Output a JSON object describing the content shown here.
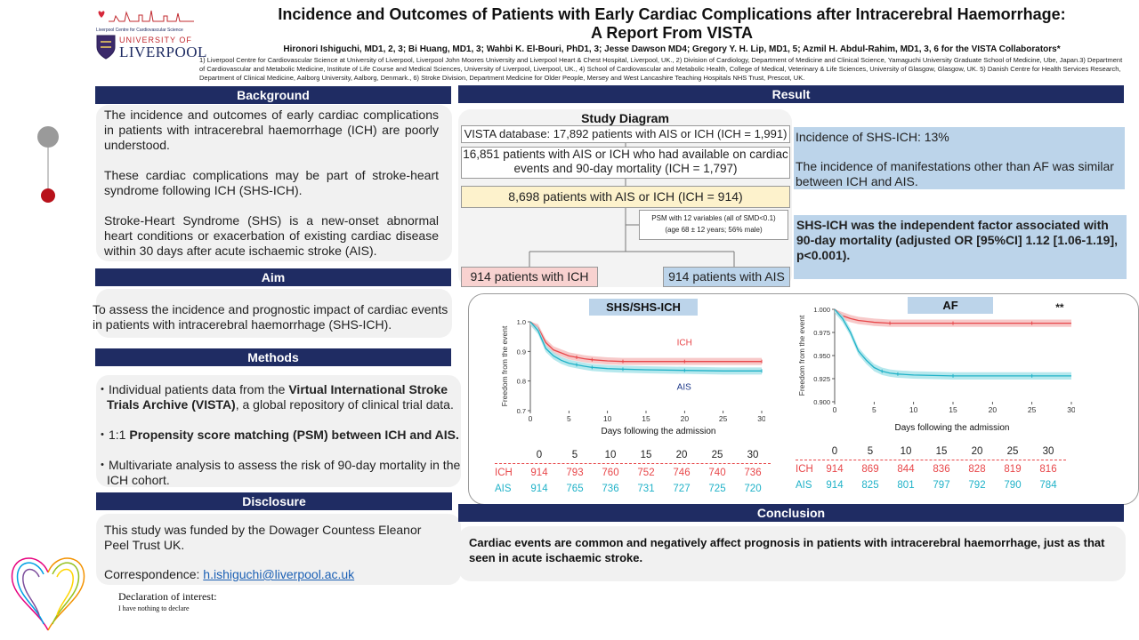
{
  "logos": {
    "lccs_text": "Liverpool Centre for Cardiovascular Science",
    "uni_line1": "UNIVERSITY OF",
    "uni_line2": "LIVERPOOL"
  },
  "title_line1": "Incidence and Outcomes of Patients with Early Cardiac Complications after Intracerebral Haemorrhage:",
  "title_line2": "A Report From VISTA",
  "authors": "Hironori Ishiguchi, MD1, 2, 3; Bi Huang, MD1, 3; Wahbi K. El-Bouri, PhD1, 3; Jesse Dawson MD4; Gregory Y. H. Lip, MD1, 5; Azmil H. Abdul-Rahim, MD1, 3, 6  for the VISTA Collaborators*",
  "affiliations": "1) Liverpool Centre for Cardiovascular Science at University of Liverpool, Liverpool John Moores University and Liverpool Heart & Chest Hospital, Liverpool, UK., 2) Division of Cardiology, Department of Medicine and Clinical Science, Yamaguchi University Graduate School of Medicine, Ube, Japan.3) Department of Cardiovascular and Metabolic Medicine, Institute of Life Course and Medical Sciences, University of Liverpool, Liverpool, UK., 4)  School of Cardiovascular and Metabolic Health, College of Medical, Veterinary & Life Sciences, University of Glasgow, Glasgow, UK. 5) Danish Centre for Health Services Research, Department of Clinical Medicine, Aalborg University, Aalborg, Denmark., 6) Stroke Division, Department Medicine for Older People, Mersey and West Lancashire Teaching Hospitals NHS Trust, Prescot, UK.",
  "background": {
    "header": "Background",
    "p1": "The incidence and outcomes of early cardiac complications in patients with intracerebral haemorrhage (ICH) are poorly understood.",
    "p2": "These cardiac complications may be part of stroke-heart syndrome following ICH (SHS-ICH).",
    "p3": "Stroke-Heart Syndrome (SHS) is a new-onset abnormal heart conditions or exacerbation of existing cardiac disease within 30 days after acute ischaemic stroke (AIS)."
  },
  "aim": {
    "header": "Aim",
    "text": "To assess the incidence and prognostic impact of cardiac events in patients with intracerebral haemorrhage (SHS-ICH)."
  },
  "methods": {
    "header": "Methods",
    "b1_pre": "・Individual patients data from the ",
    "b1_bold": "Virtual International Stroke Trials Archive (VISTA)",
    "b1_post": ", a global repository of clinical trial data.",
    "b2_pre": "・1:1 ",
    "b2_bold": "Propensity score matching (PSM) between ICH and AIS.",
    "b3": "・Multivariate analysis to assess the risk of 90-day mortality in the ICH cohort."
  },
  "disclosure": {
    "header": "Disclosure",
    "funding": "This study was funded by the Dowager Countess Eleanor Peel Trust UK.",
    "corr_label": "Correspondence: ",
    "email": "h.ishiguchi@liverpool.ac.uk",
    "decl_title": "Declaration of interest:",
    "decl_text": "I have nothing to declare"
  },
  "result": {
    "header": "Result",
    "study_diagram_title": "Study Diagram",
    "box1": "VISTA database: 17,892 patients with AIS or ICH (ICH = 1,991)",
    "box2": "16,851 patients with AIS or ICH who had available on cardiac events and 90-day mortality (ICH = 1,797)",
    "box3": "8,698 patients with AIS or ICH (ICH = 914)",
    "psm1": "PSM with 12 variables (all of SMD<0.1)",
    "psm2": "(age 68 ± 12 years; 56% male)",
    "box_ich": "914 patients with ICH",
    "box_ais": "914 patients with AIS",
    "incidence": "Incidence of SHS-ICH: 13%",
    "manifest": "The incidence of manifestations other than AF was similar between ICH and AIS.",
    "independent": "SHS-ICH was the independent factor associated with 90-day mortality (adjusted OR [95%CI] 1.12 [1.06-1.19], p<0.001)."
  },
  "conclusion": {
    "header": "Conclusion",
    "text": "Cardiac events are common and negatively affect prognosis in patients with intracerebral haemorrhage, just as that seen in acute ischaemic stroke."
  },
  "colors": {
    "navy": "#1f2c63",
    "ich": "#e8474a",
    "ais": "#20b2c8",
    "ich_band": "#f6c0c0",
    "ais_band": "#a9e4ea"
  },
  "chart_data": [
    {
      "type": "line",
      "title": "SHS/SHS-ICH",
      "xlabel": "Days following the admission",
      "ylabel": "Freedom from the event",
      "xlim": [
        0,
        30
      ],
      "ylim": [
        0.7,
        1.0
      ],
      "xticks": [
        0,
        5,
        10,
        15,
        20,
        25,
        30
      ],
      "yticks": [
        "0.7",
        "0.8",
        "0.9",
        "1.0"
      ],
      "series": [
        {
          "name": "ICH",
          "x": [
            0,
            1,
            2,
            3,
            4,
            5,
            6,
            7,
            8,
            10,
            12,
            15,
            20,
            25,
            30
          ],
          "y": [
            1.0,
            0.98,
            0.93,
            0.905,
            0.895,
            0.885,
            0.88,
            0.875,
            0.872,
            0.868,
            0.866,
            0.866,
            0.866,
            0.866,
            0.866
          ]
        },
        {
          "name": "AIS",
          "x": [
            0,
            1,
            2,
            3,
            4,
            5,
            6,
            7,
            8,
            10,
            12,
            15,
            20,
            25,
            30
          ],
          "y": [
            1.0,
            0.97,
            0.91,
            0.885,
            0.87,
            0.86,
            0.855,
            0.85,
            0.846,
            0.842,
            0.84,
            0.838,
            0.836,
            0.834,
            0.834
          ]
        }
      ],
      "risk_table": {
        "x": [
          "0",
          "5",
          "10",
          "15",
          "20",
          "25",
          "30"
        ],
        "rows": [
          {
            "name": "ICH",
            "values": [
              "914",
              "793",
              "760",
              "752",
              "746",
              "740",
              "736"
            ]
          },
          {
            "name": "AIS",
            "values": [
              "914",
              "765",
              "736",
              "731",
              "727",
              "725",
              "720"
            ]
          }
        ]
      }
    },
    {
      "type": "line",
      "title": "AF",
      "annotation": "**",
      "xlabel": "Days following the admission",
      "ylabel": "Freedom from the event",
      "xlim": [
        0,
        30
      ],
      "ylim": [
        0.9,
        1.0
      ],
      "xticks": [
        0,
        5,
        10,
        15,
        20,
        25,
        30
      ],
      "yticks": [
        "0.900",
        "0.925",
        "0.950",
        "0.975",
        "1.000"
      ],
      "series": [
        {
          "name": "ICH",
          "x": [
            0,
            1,
            2,
            3,
            4,
            5,
            7,
            10,
            15,
            20,
            25,
            30
          ],
          "y": [
            1.0,
            0.993,
            0.99,
            0.988,
            0.987,
            0.986,
            0.985,
            0.985,
            0.985,
            0.985,
            0.985,
            0.985
          ]
        },
        {
          "name": "AIS",
          "x": [
            0,
            1,
            2,
            3,
            4,
            5,
            6,
            7,
            8,
            10,
            15,
            20,
            25,
            30
          ],
          "y": [
            1.0,
            0.99,
            0.975,
            0.955,
            0.945,
            0.937,
            0.933,
            0.931,
            0.93,
            0.929,
            0.928,
            0.928,
            0.928,
            0.928
          ]
        }
      ],
      "risk_table": {
        "x": [
          "0",
          "5",
          "10",
          "15",
          "20",
          "25",
          "30"
        ],
        "rows": [
          {
            "name": "ICH",
            "values": [
              "914",
              "869",
              "844",
              "836",
              "828",
              "819",
              "816"
            ]
          },
          {
            "name": "AIS",
            "values": [
              "914",
              "825",
              "801",
              "797",
              "792",
              "790",
              "784"
            ]
          }
        ]
      }
    }
  ]
}
